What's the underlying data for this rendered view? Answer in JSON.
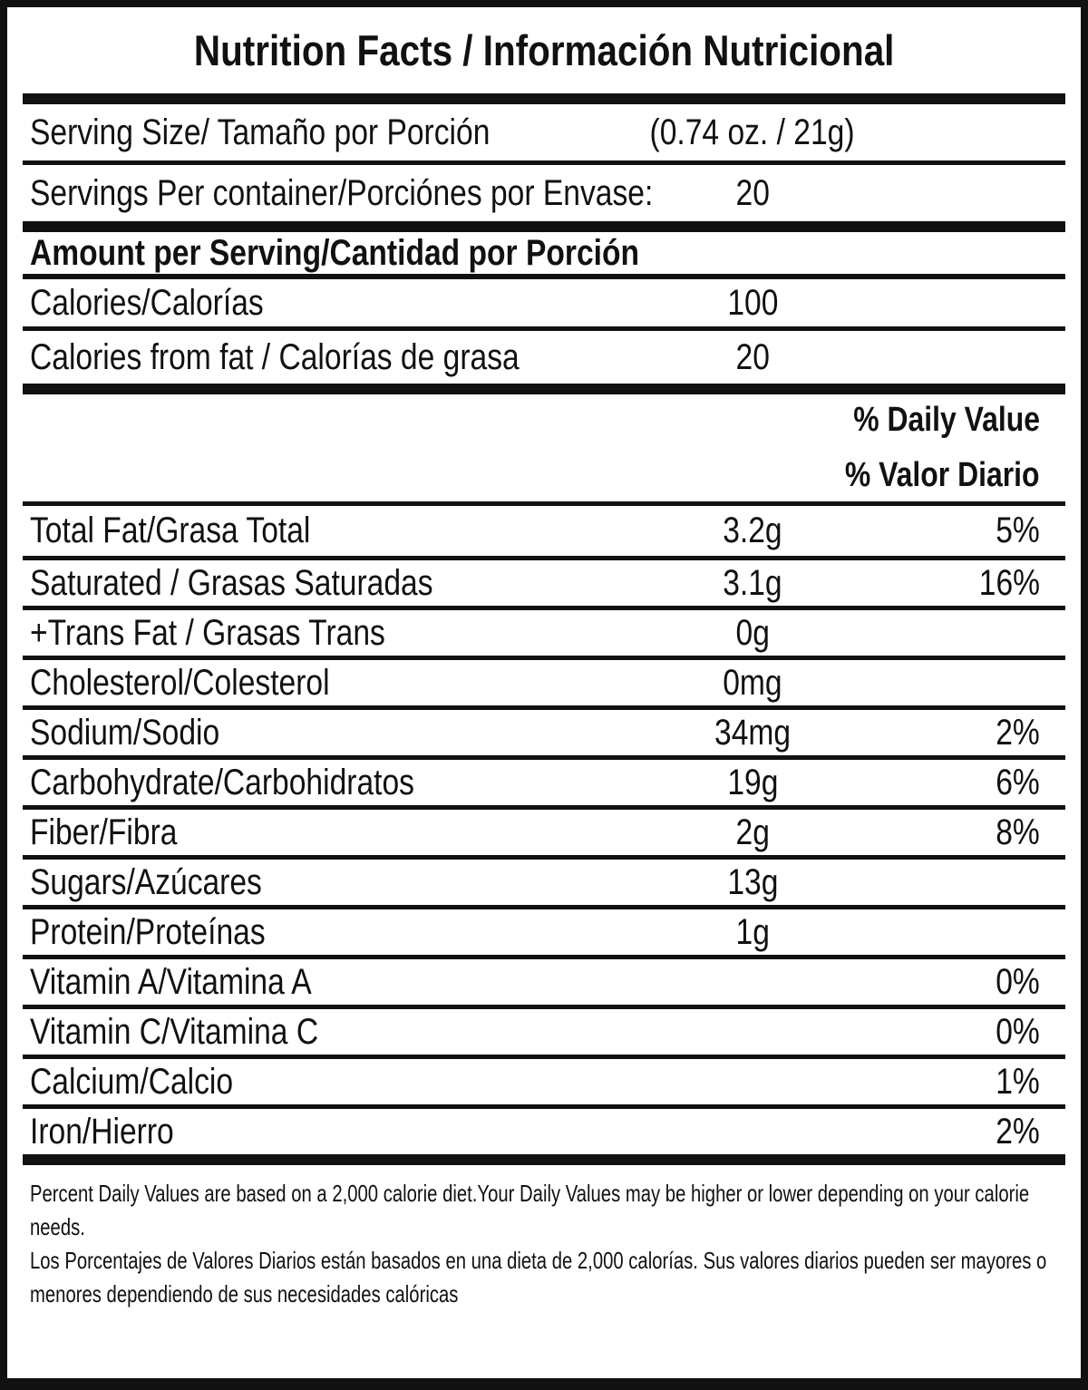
{
  "title": "Nutrition Facts / Información Nutricional",
  "header_rows": [
    {
      "label": "Serving Size/ Tamaño por Porción",
      "value": "(0.74 oz. / 21g)"
    },
    {
      "label": "Servings Per container/Porciónes por Envase:",
      "value": "20"
    }
  ],
  "amount_heading": "Amount per Serving/Cantidad por Porción",
  "calorie_rows": [
    {
      "label": "Calories/Calorías",
      "value": "100"
    },
    {
      "label": "Calories from fat / Calorías de grasa",
      "value": "20"
    }
  ],
  "daily_value_header": [
    "% Daily Value",
    "% Valor Diario"
  ],
  "nutrient_rows": [
    {
      "label": "Total Fat/Grasa Total",
      "amount": "3.2g",
      "dv": "5%"
    },
    {
      "label": "Saturated / Grasas Saturadas",
      "amount": "3.1g",
      "dv": "16%"
    },
    {
      "label": "+Trans Fat / Grasas Trans",
      "amount": "0g",
      "dv": ""
    },
    {
      "label": "Cholesterol/Colesterol",
      "amount": "0mg",
      "dv": ""
    },
    {
      "label": "Sodium/Sodio",
      "amount": "34mg",
      "dv": "2%"
    },
    {
      "label": "Carbohydrate/Carbohidratos",
      "amount": "19g",
      "dv": "6%"
    },
    {
      "label": "Fiber/Fibra",
      "amount": "2g",
      "dv": "8%"
    },
    {
      "label": "Sugars/Azúcares",
      "amount": "13g",
      "dv": ""
    },
    {
      "label": "Protein/Proteínas",
      "amount": "1g",
      "dv": ""
    },
    {
      "label": "Vitamin A/Vitamina A",
      "amount": "",
      "dv": "0%"
    },
    {
      "label": "Vitamin C/Vitamina C",
      "amount": "",
      "dv": "0%"
    },
    {
      "label": "Calcium/Calcio",
      "amount": "",
      "dv": "1%"
    },
    {
      "label": "Iron/Hierro",
      "amount": "",
      "dv": "2%"
    }
  ],
  "footnotes": {
    "en": "Percent Daily Values are based on a 2,000 calorie diet.Your Daily Values may be higher or lower depending on your calorie needs.",
    "es": "Los Porcentajes de Valores Diarios están basados en una dieta de 2,000 calorías. Sus valores diarios pueden ser mayores o menores dependiendo de sus necesidades calóricas"
  },
  "colors": {
    "ink": "#111111",
    "background": "#ffffff"
  }
}
